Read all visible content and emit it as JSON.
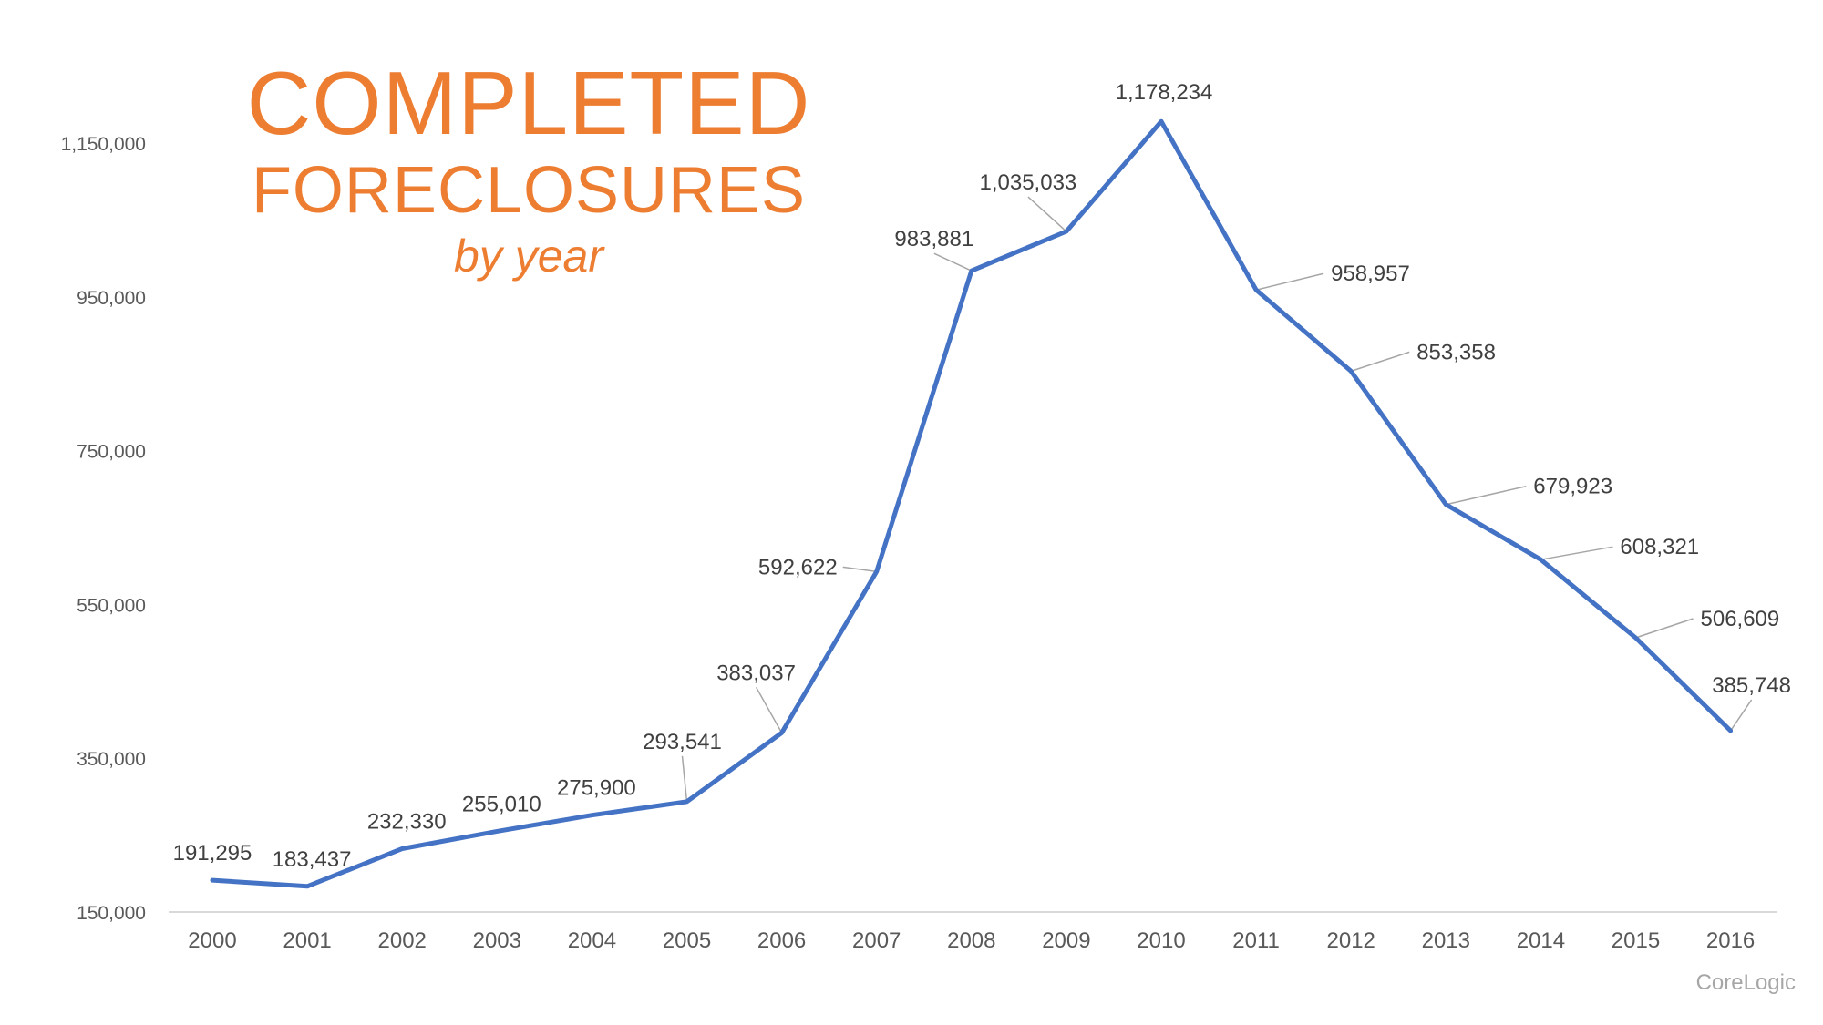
{
  "title": {
    "line1": "COMPLETED",
    "line2": "FORECLOSURES",
    "line3": "by year"
  },
  "source": "CoreLogic",
  "colors": {
    "line": "#4472C4",
    "title": "#ED7D31",
    "axis": "#D9D9D9",
    "leader": "#A6A6A6"
  },
  "chart_data": {
    "type": "line",
    "categories": [
      "2000",
      "2001",
      "2002",
      "2003",
      "2004",
      "2005",
      "2006",
      "2007",
      "2008",
      "2009",
      "2010",
      "2011",
      "2012",
      "2013",
      "2014",
      "2015",
      "2016"
    ],
    "series": [
      {
        "values": [
          191295,
          183437,
          232330,
          255010,
          275900,
          293541,
          383037,
          592622,
          983881,
          1035033,
          1178234,
          958957,
          853358,
          679923,
          608321,
          506609,
          385748
        ],
        "labels": [
          "191,295",
          "183,437",
          "232,330",
          "255,010",
          "275,900",
          "293,541",
          "383,037",
          "592,622",
          "983,881",
          "1,035,033",
          "1,178,234",
          "958,957",
          "853,358",
          "679,923",
          "608,321",
          "506,609",
          "385,748"
        ]
      }
    ],
    "ylim": [
      150000,
      1150000
    ],
    "yticks": [
      150000,
      350000,
      550000,
      750000,
      950000,
      1150000
    ],
    "ytick_labels": [
      "150,000",
      "350,000",
      "550,000",
      "750,000",
      "950,000",
      "1,150,000"
    ],
    "grid": false,
    "legend": "none",
    "xlabel": "",
    "ylabel": ""
  }
}
